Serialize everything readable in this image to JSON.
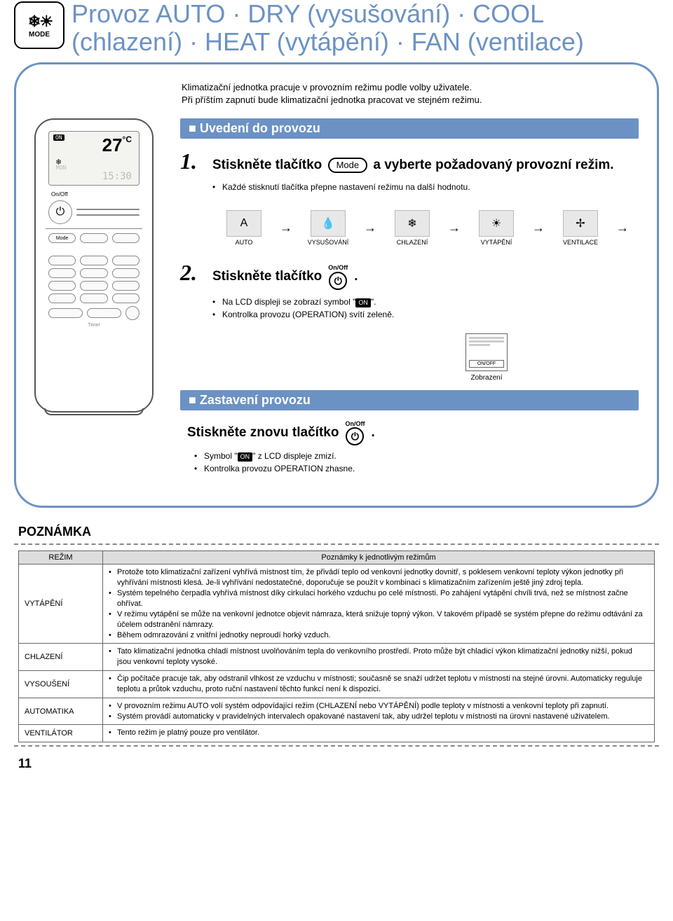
{
  "colors": {
    "accent": "#6c92c4",
    "text": "#000000",
    "grid": "#888888"
  },
  "mode_icon": {
    "label": "MODE",
    "glyphs": "❄ ☀"
  },
  "title": "Provoz AUTO · DRY (vysušování) · COOL (chlazení) · HEAT (vytápění) · FAN (ventilace)",
  "intro": {
    "line1": "Klimatizační jednotka pracuje v provozním režimu podle volby uživatele.",
    "line2": "Při příštím zapnutí bude klimatizační jednotka pracovat ve stejném režimu."
  },
  "remote": {
    "on": "ON",
    "temp": "27",
    "temp_unit": "°C",
    "snow": "❄",
    "mon": "MON",
    "time": "15:30",
    "onoff": "On/Off",
    "power": "⏻",
    "mode_btn": "Mode",
    "timer": "Timer"
  },
  "section1": {
    "header": "Uvedení do provozu",
    "step1_pre": "Stiskněte tlačítko",
    "step1_btn": "Mode",
    "step1_post": "a vyberte požadovaný provozní režim.",
    "step1_bullet": "Každé stisknutí tlačítka přepne nastavení režimu na další hodnotu.",
    "flow": {
      "items": [
        {
          "glyph": "A",
          "label": "AUTO"
        },
        {
          "glyph": "💧",
          "label": "VYSUŠOVÁNÍ"
        },
        {
          "glyph": "❄",
          "label": "CHLAZENÍ"
        },
        {
          "glyph": "☀",
          "label": "VYTÁPĚNÍ"
        },
        {
          "glyph": "✢",
          "label": "VENTILACE"
        }
      ]
    },
    "step2_pre": "Stiskněte tlačítko",
    "step2_onoff": "On/Off",
    "step2_power": "⏻",
    "step2_post": ".",
    "step2_b1_pre": "Na LCD displeji se zobrazí symbol \"",
    "step2_b1_badge": "ON",
    "step2_b1_post": "\".",
    "step2_b2": "Kontrolka provozu (OPERATION) svítí zeleně.",
    "display_label": "Zobrazení",
    "display_onoff": "ON/OFF"
  },
  "section2": {
    "header": "Zastavení provozu",
    "text_pre": "Stiskněte znovu tlačítko",
    "onoff": "On/Off",
    "power": "⏻",
    "text_post": ".",
    "b1_pre": "Symbol \"",
    "b1_badge": "ON",
    "b1_post": "\" z LCD displeje zmizí.",
    "b2": "Kontrolka provozu OPERATION zhasne."
  },
  "notes": {
    "title": "POZNÁMKA",
    "col_mode": "REŽIM",
    "col_desc": "Poznámky k jednotlivým režimům",
    "rows": [
      {
        "mode": "VYTÁPĚNÍ",
        "items": [
          "Protože toto klimatizační zařízení vyhřívá místnost tím, že přivádí teplo od venkovní jednotky dovnitř, s poklesem venkovní teploty výkon jednotky při vyhřívání místnosti klesá. Je-li vyhřívání nedostatečné, doporučuje se použít v kombinaci s klimatizačním zařízením ještě jiný zdroj tepla.",
          "Systém tepelného čerpadla vyhřívá místnost díky cirkulaci horkého vzduchu po celé místnosti. Po zahájení vytápění chvíli trvá, než se místnost začne ohřívat.",
          "V režimu vytápění se může na venkovní jednotce objevit námraza, která snižuje topný výkon. V takovém případě se systém přepne do režimu odtávání za účelem odstranění námrazy.",
          "Během odmrazování z vnitřní jednotky neproudí horký vzduch."
        ]
      },
      {
        "mode": "CHLAZENÍ",
        "items": [
          "Tato klimatizační jednotka chladí místnost uvolňováním tepla do venkovního prostředí. Proto může být chladicí výkon klimatizační jednotky nižší, pokud jsou venkovní teploty vysoké."
        ]
      },
      {
        "mode": "VYSOUŠENÍ",
        "items": [
          "Čip počítače pracuje tak, aby odstranil vlhkost ze vzduchu v místnosti; současně se snaží udržet teplotu v místnosti na stejné úrovni. Automaticky reguluje teplotu a průtok vzduchu, proto ruční nastavení těchto funkcí není k dispozici."
        ]
      },
      {
        "mode": "AUTOMATIKA",
        "items": [
          "V provozním režimu AUTO volí systém odpovídající režim (CHLAZENÍ nebo VYTÁPĚNÍ) podle teploty v místnosti a venkovní teploty při zapnutí.",
          "Systém provádí automaticky v pravidelných intervalech opakované nastavení tak, aby udržel teplotu v místnosti na úrovni nastavené uživatelem."
        ]
      },
      {
        "mode": "VENTILÁTOR",
        "items": [
          "Tento režim je platný pouze pro ventilátor."
        ]
      }
    ]
  },
  "page_number": "11"
}
